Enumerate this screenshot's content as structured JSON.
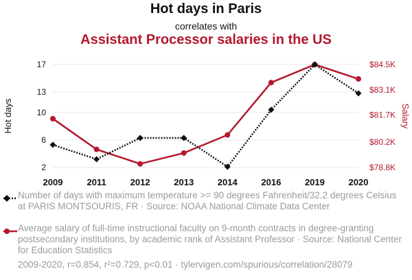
{
  "header": {
    "title": "Hot days in Paris",
    "connector": "correlates with",
    "subtitle": "Assistant Processor salaries in the US"
  },
  "colors": {
    "series1": "#111111",
    "series2": "#b4182d",
    "muted": "#9a9a9a",
    "grid": "#e9e9e9"
  },
  "chart_data": {
    "type": "line",
    "grid": true,
    "x": [
      "2009",
      "2011",
      "2012",
      "2013",
      "2014",
      "2016",
      "2019",
      "2020"
    ],
    "left_axis": {
      "label": "Hot days",
      "ticks": [
        "2",
        "6",
        "10",
        "13",
        "17"
      ],
      "range": [
        2,
        17
      ]
    },
    "right_axis": {
      "label": "Salary",
      "ticks": [
        "$78.8K",
        "$80.2K",
        "$81.7K",
        "$83.1K",
        "$84.5K"
      ],
      "range": [
        78.8,
        84.5
      ]
    },
    "series": [
      {
        "axis": "left",
        "marker": "diamond",
        "style": "dotted",
        "values": [
          5.3,
          3.2,
          6.3,
          6.3,
          2.1,
          10.4,
          17,
          12.8
        ]
      },
      {
        "axis": "right",
        "marker": "circle",
        "style": "solid",
        "values": [
          81.5,
          79.8,
          79.0,
          79.6,
          80.6,
          83.5,
          84.5,
          83.7
        ]
      }
    ]
  },
  "legend": {
    "series1": "Number of days with maximum temperature >= 90 degrees Fahrenheit/32.2 degrees Celsius at PARIS MONTSOURIS, FR · Source: NOAA National Climate Data Center",
    "series2": "Average salary of full-time instructional faculty on 9-month contracts in degree-granting postsecondary institutions, by academic rank of Assistant Professor · Source: National Center for Education Statistics"
  },
  "footer": "2009-2020, r=0.854, r²=0.729, p<0.01 · tylervigen.com/spurious/correlation/28079"
}
